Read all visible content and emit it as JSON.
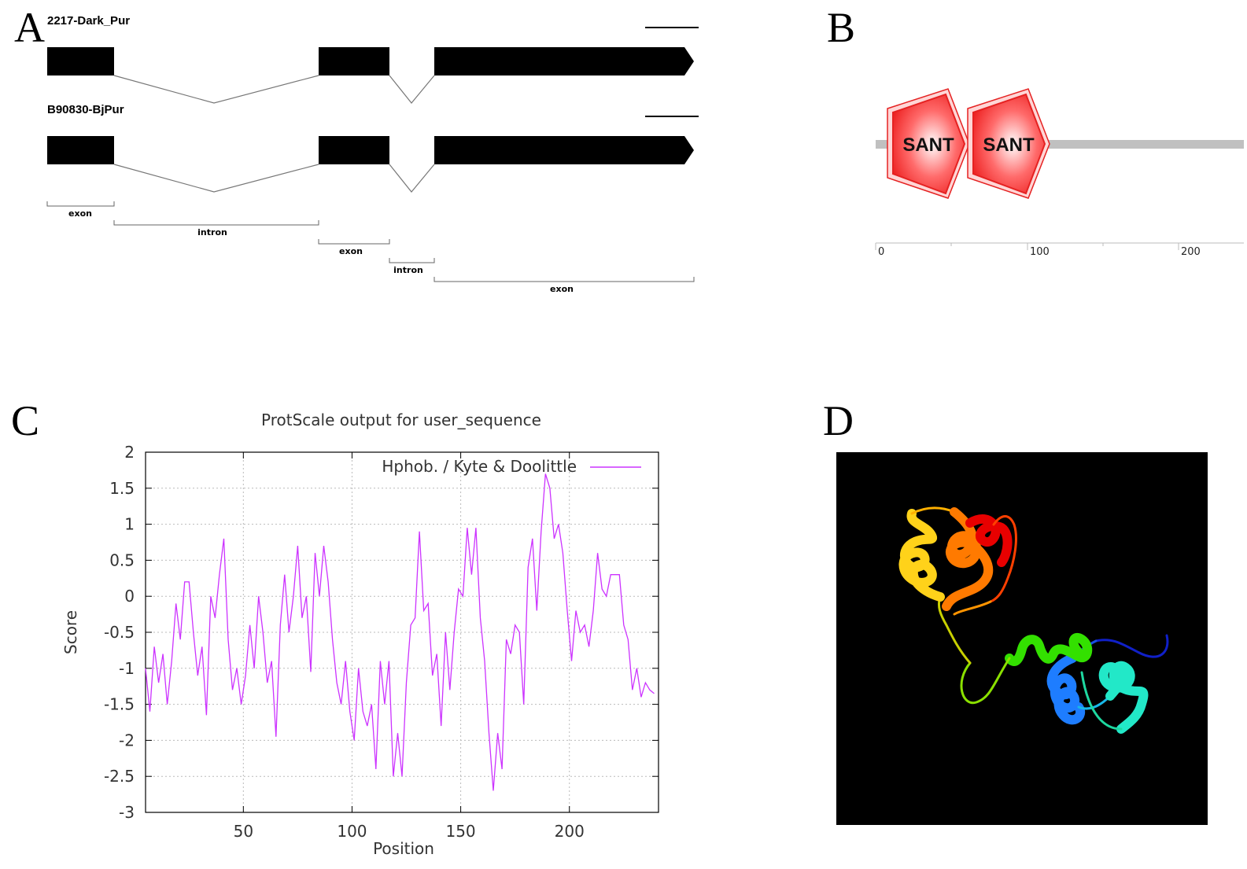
{
  "panels": {
    "a": "A",
    "b": "B",
    "c": "C",
    "d": "D"
  },
  "gene_structure": {
    "genes": [
      {
        "name": "2217-Dark_Pur"
      },
      {
        "name": "B90830-BjPur"
      }
    ],
    "segments": [
      {
        "label": "exon"
      },
      {
        "label": "intron"
      },
      {
        "label": "exon"
      },
      {
        "label": "intron"
      },
      {
        "label": "exon"
      }
    ]
  },
  "domain_map": {
    "domains": [
      {
        "label": "SANT"
      },
      {
        "label": "SANT"
      }
    ],
    "axis_ticks": [
      "0",
      "100",
      "200"
    ]
  },
  "chart_data": {
    "type": "line",
    "title": "ProtScale output for user_sequence",
    "xlabel": "Position",
    "ylabel": "Score",
    "xlim": [
      5,
      241
    ],
    "ylim": [
      -3,
      2
    ],
    "xticks": [
      50,
      100,
      150,
      200
    ],
    "yticks": [
      2,
      1.5,
      1,
      0.5,
      0,
      -0.5,
      -1,
      -1.5,
      -2,
      -2.5,
      -3
    ],
    "ytick_labels": [
      "2",
      "1.5",
      "1",
      "0.5",
      "0",
      "-0.5",
      "-1",
      "-1.5",
      "-2",
      "-2.5",
      "-3"
    ],
    "grid": true,
    "legend_position": "top-right",
    "series": [
      {
        "name": "Hphob. / Kyte & Doolittle",
        "color": "#cc33ff",
        "x": [
          5,
          7,
          9,
          11,
          13,
          15,
          17,
          19,
          21,
          23,
          25,
          27,
          29,
          31,
          33,
          35,
          37,
          39,
          41,
          43,
          45,
          47,
          49,
          51,
          53,
          55,
          57,
          59,
          61,
          63,
          65,
          67,
          69,
          71,
          73,
          75,
          77,
          79,
          81,
          83,
          85,
          87,
          89,
          91,
          93,
          95,
          97,
          99,
          101,
          103,
          105,
          107,
          109,
          111,
          113,
          115,
          117,
          119,
          121,
          123,
          125,
          127,
          129,
          131,
          133,
          135,
          137,
          139,
          141,
          143,
          145,
          147,
          149,
          151,
          153,
          155,
          157,
          159,
          161,
          163,
          165,
          167,
          169,
          171,
          173,
          175,
          177,
          179,
          181,
          183,
          185,
          187,
          189,
          191,
          193,
          195,
          197,
          199,
          201,
          203,
          205,
          207,
          209,
          211,
          213,
          215,
          217,
          219,
          221,
          223,
          225,
          227,
          229,
          231,
          233,
          235,
          237,
          239
        ],
        "y": [
          -1.0,
          -1.6,
          -0.7,
          -1.2,
          -0.8,
          -1.5,
          -0.9,
          -0.1,
          -0.6,
          0.2,
          0.2,
          -0.5,
          -1.1,
          -0.7,
          -1.65,
          0.0,
          -0.3,
          0.3,
          0.8,
          -0.6,
          -1.3,
          -1.0,
          -1.5,
          -1.1,
          -0.4,
          -1.0,
          0.0,
          -0.5,
          -1.2,
          -0.9,
          -1.95,
          -0.4,
          0.3,
          -0.5,
          0.0,
          0.7,
          -0.3,
          0.0,
          -1.05,
          0.6,
          0.0,
          0.7,
          0.2,
          -0.6,
          -1.2,
          -1.5,
          -0.9,
          -1.6,
          -2.0,
          -1.0,
          -1.6,
          -1.8,
          -1.5,
          -2.4,
          -0.9,
          -1.5,
          -0.9,
          -2.5,
          -1.9,
          -2.5,
          -1.2,
          -0.4,
          -0.3,
          0.9,
          -0.2,
          -0.1,
          -1.1,
          -0.8,
          -1.8,
          -0.5,
          -1.3,
          -0.5,
          0.1,
          0.0,
          0.95,
          0.3,
          0.95,
          -0.3,
          -0.9,
          -1.9,
          -2.7,
          -1.9,
          -2.4,
          -0.6,
          -0.8,
          -0.4,
          -0.5,
          -1.5,
          0.4,
          0.8,
          -0.2,
          0.9,
          1.7,
          1.5,
          0.8,
          1.0,
          0.6,
          -0.2,
          -0.9,
          -0.2,
          -0.5,
          -0.4,
          -0.7,
          -0.2,
          0.6,
          0.1,
          0.0,
          0.3,
          0.3,
          0.3,
          -0.4,
          -0.6,
          -1.3,
          -1.0,
          -1.4,
          -1.2,
          -1.3,
          -1.35
        ]
      }
    ]
  }
}
